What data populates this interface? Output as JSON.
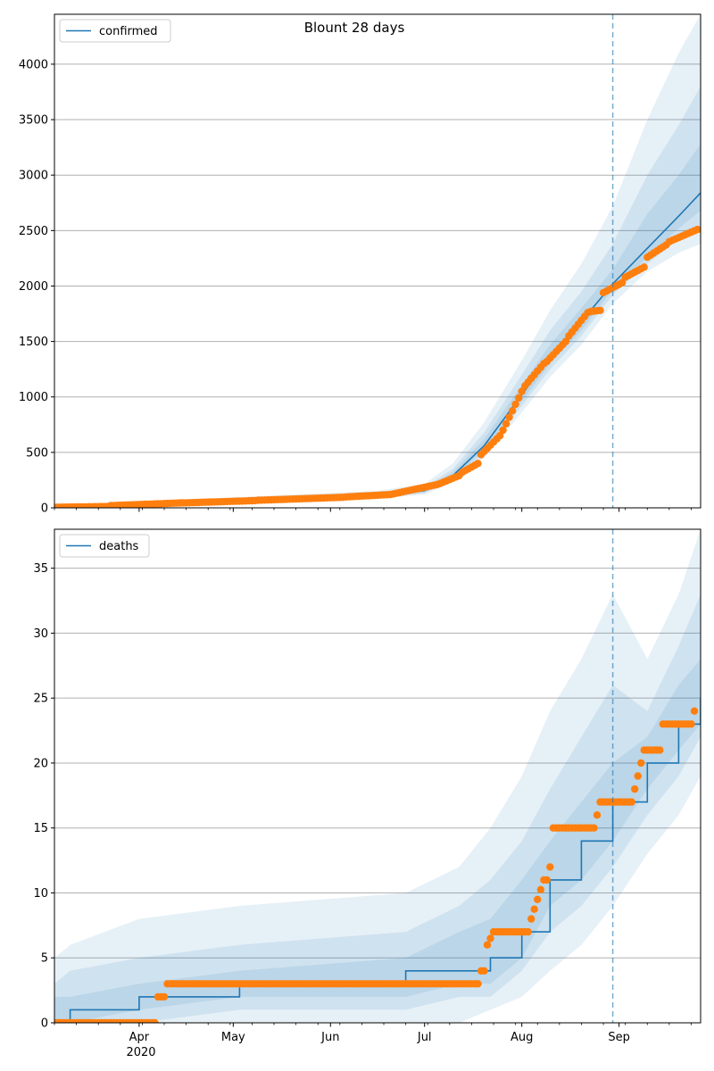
{
  "figure": {
    "title": "Blount 28 days",
    "x_tick_labels": [
      {
        "date": "2020-04-01",
        "label": "Apr"
      },
      {
        "date": "2020-05-01",
        "label": "May"
      },
      {
        "date": "2020-06-01",
        "label": "Jun"
      },
      {
        "date": "2020-07-01",
        "label": "Jul"
      },
      {
        "date": "2020-08-01",
        "label": "Aug"
      },
      {
        "date": "2020-09-01",
        "label": "Sep"
      }
    ],
    "year_label": "2020",
    "forecast_start": "2020-08-30"
  },
  "chart_data": [
    {
      "type": "line",
      "name": "confirmed",
      "x_range": [
        "2020-03-05",
        "2020-09-27"
      ],
      "ylim": [
        0,
        4450
      ],
      "y_ticks": [
        0,
        500,
        1000,
        1500,
        2000,
        2500,
        3000,
        3500,
        4000
      ],
      "grid": "y",
      "legend": "top-left",
      "colors": {
        "line": "#1f77b4",
        "points": "#ff7f0e"
      },
      "forecast": {
        "x": [
          "2020-03-05",
          "2020-03-20",
          "2020-04-01",
          "2020-05-01",
          "2020-06-01",
          "2020-06-15",
          "2020-07-01",
          "2020-07-10",
          "2020-07-20",
          "2020-08-01",
          "2020-08-10",
          "2020-08-20",
          "2020-08-30",
          "2020-09-10",
          "2020-09-20",
          "2020-09-27"
        ],
        "median": [
          5,
          10,
          25,
          60,
          95,
          105,
          155,
          290,
          560,
          1020,
          1370,
          1680,
          2020,
          2340,
          2630,
          2840
        ],
        "bands": [
          {
            "lower": [
              0,
              3,
              14,
              42,
              72,
              82,
              120,
              230,
              450,
              860,
              1180,
              1470,
              1840,
              2130,
              2300,
              2380
            ],
            "upper": [
              12,
              22,
              45,
              95,
              135,
              150,
              215,
              400,
              770,
              1330,
              1780,
              2200,
              2720,
              3500,
              4100,
              4450
            ]
          },
          {
            "lower": [
              2,
              5,
              18,
              48,
              80,
              90,
              132,
              250,
              490,
              920,
              1250,
              1550,
              1920,
              2200,
              2420,
              2520
            ],
            "upper": [
              9,
              17,
              36,
              80,
              118,
              130,
              190,
              350,
              680,
              1200,
              1600,
              1950,
              2380,
              3000,
              3450,
              3800
            ]
          },
          {
            "lower": [
              3,
              7,
              21,
              53,
              86,
              96,
              140,
              265,
              520,
              960,
              1300,
              1600,
              1970,
              2260,
              2520,
              2680
            ],
            "upper": [
              7,
              14,
              31,
              70,
              106,
              118,
              172,
              320,
              620,
              1110,
              1470,
              1800,
              2150,
              2650,
              3000,
              3280
            ]
          }
        ]
      },
      "observed": {
        "segments": [
          {
            "start": "2020-03-05",
            "end": "2020-03-22",
            "y0": 5,
            "y1": 12
          },
          {
            "start": "2020-03-23",
            "end": "2020-04-15",
            "y0": 20,
            "y1": 45
          },
          {
            "start": "2020-04-16",
            "end": "2020-05-08",
            "y0": 45,
            "y1": 65
          },
          {
            "start": "2020-05-09",
            "end": "2020-06-05",
            "y0": 68,
            "y1": 95
          },
          {
            "start": "2020-06-06",
            "end": "2020-06-20",
            "y0": 98,
            "y1": 120
          },
          {
            "start": "2020-06-21",
            "end": "2020-07-05",
            "y0": 125,
            "y1": 210
          },
          {
            "start": "2020-07-06",
            "end": "2020-07-12",
            "y0": 220,
            "y1": 290
          },
          {
            "start": "2020-07-13",
            "end": "2020-07-18",
            "y0": 320,
            "y1": 400
          },
          {
            "start": "2020-07-19",
            "end": "2020-07-25",
            "y0": 480,
            "y1": 650
          },
          {
            "start": "2020-07-26",
            "end": "2020-08-01",
            "y0": 700,
            "y1": 1050
          },
          {
            "start": "2020-08-02",
            "end": "2020-08-08",
            "y0": 1100,
            "y1": 1300
          },
          {
            "start": "2020-08-09",
            "end": "2020-08-15",
            "y0": 1320,
            "y1": 1500
          },
          {
            "start": "2020-08-16",
            "end": "2020-08-22",
            "y0": 1550,
            "y1": 1760
          },
          {
            "start": "2020-08-23",
            "end": "2020-08-26",
            "y0": 1770,
            "y1": 1780
          },
          {
            "start": "2020-08-27",
            "end": "2020-09-02",
            "y0": 1940,
            "y1": 2030
          },
          {
            "start": "2020-09-03",
            "end": "2020-09-09",
            "y0": 2080,
            "y1": 2170
          },
          {
            "start": "2020-09-10",
            "end": "2020-09-16",
            "y0": 2260,
            "y1": 2370
          },
          {
            "start": "2020-09-17",
            "end": "2020-09-26",
            "y0": 2400,
            "y1": 2510
          }
        ]
      }
    },
    {
      "type": "line",
      "name": "deaths",
      "x_range": [
        "2020-03-05",
        "2020-09-27"
      ],
      "ylim": [
        0,
        38
      ],
      "y_ticks": [
        0,
        5,
        10,
        15,
        20,
        25,
        30,
        35
      ],
      "grid": "y",
      "legend": "top-left",
      "colors": {
        "line": "#1f77b4",
        "points": "#ff7f0e"
      },
      "forecast": {
        "x": [
          "2020-03-05",
          "2020-03-10",
          "2020-04-01",
          "2020-05-03",
          "2020-06-25",
          "2020-07-12",
          "2020-07-22",
          "2020-08-01",
          "2020-08-10",
          "2020-08-20",
          "2020-08-30",
          "2020-09-10",
          "2020-09-20",
          "2020-09-27"
        ],
        "median": [
          0,
          1,
          2,
          3,
          4,
          4,
          5,
          7,
          11,
          14,
          17,
          20,
          23,
          25
        ],
        "bands": [
          {
            "lower": [
              0,
              0,
              0,
              0,
              0,
              0,
              1,
              2,
              4,
              6,
              9,
              13,
              16,
              19
            ],
            "upper": [
              5,
              6,
              8,
              9,
              10,
              12,
              15,
              19,
              24,
              28,
              33,
              28,
              33,
              38
            ]
          },
          {
            "lower": [
              0,
              0,
              0,
              1,
              1,
              2,
              2,
              4,
              7,
              9,
              12,
              16,
              19,
              22
            ],
            "upper": [
              3,
              4,
              5,
              6,
              7,
              9,
              11,
              14,
              18,
              22,
              26,
              24,
              29,
              33
            ]
          },
          {
            "lower": [
              0,
              0,
              1,
              2,
              2,
              3,
              3,
              5,
              9,
              11,
              14,
              18,
              21,
              23
            ],
            "upper": [
              2,
              2,
              3,
              4,
              5,
              7,
              8,
              11,
              14,
              17,
              20,
              22,
              26,
              28
            ]
          }
        ]
      },
      "observed": {
        "segments": [
          {
            "start": "2020-03-05",
            "end": "2020-04-06",
            "y0": 0,
            "y1": 0
          },
          {
            "start": "2020-04-07",
            "end": "2020-04-09",
            "y0": 2,
            "y1": 2
          },
          {
            "start": "2020-04-10",
            "end": "2020-07-18",
            "y0": 3,
            "y1": 3
          },
          {
            "start": "2020-07-19",
            "end": "2020-07-20",
            "y0": 4,
            "y1": 4
          },
          {
            "start": "2020-07-21",
            "end": "2020-07-23",
            "y0": 6,
            "y1": 7
          },
          {
            "start": "2020-07-24",
            "end": "2020-08-03",
            "y0": 7,
            "y1": 7
          },
          {
            "start": "2020-08-04",
            "end": "2020-08-08",
            "y0": 8,
            "y1": 11
          },
          {
            "start": "2020-08-09",
            "end": "2020-08-10",
            "y0": 11,
            "y1": 12
          },
          {
            "start": "2020-08-11",
            "end": "2020-08-24",
            "y0": 15,
            "y1": 15
          },
          {
            "start": "2020-08-25",
            "end": "2020-08-25",
            "y0": 16,
            "y1": 16
          },
          {
            "start": "2020-08-26",
            "end": "2020-09-05",
            "y0": 17,
            "y1": 17
          },
          {
            "start": "2020-09-06",
            "end": "2020-09-08",
            "y0": 18,
            "y1": 20
          },
          {
            "start": "2020-09-09",
            "end": "2020-09-14",
            "y0": 21,
            "y1": 21
          },
          {
            "start": "2020-09-15",
            "end": "2020-09-24",
            "y0": 23,
            "y1": 23
          },
          {
            "start": "2020-09-25",
            "end": "2020-09-25",
            "y0": 24,
            "y1": 24
          }
        ]
      }
    }
  ]
}
